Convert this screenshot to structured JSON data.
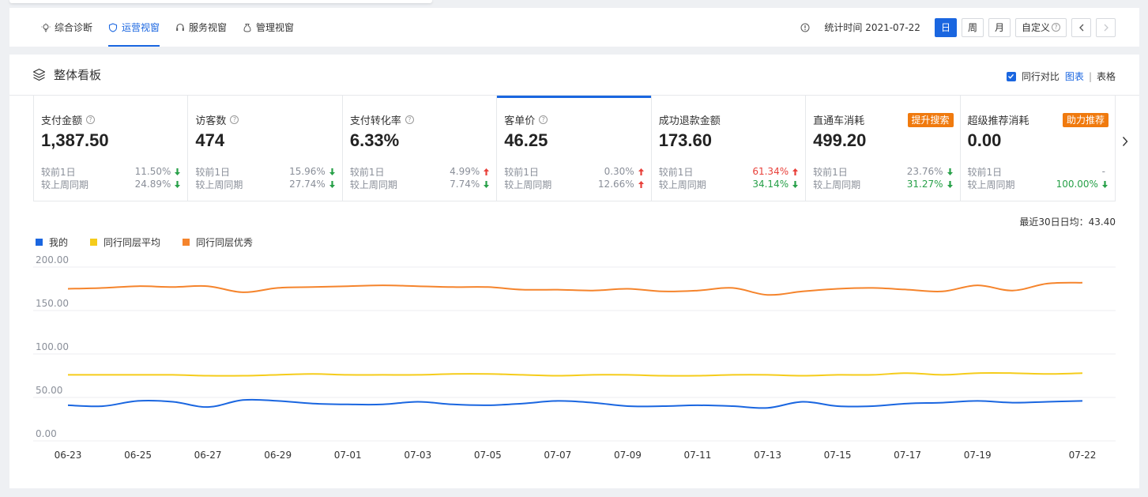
{
  "nav": {
    "tabs": [
      {
        "label": "综合诊断",
        "icon": "bulb-icon",
        "active": false
      },
      {
        "label": "运营视窗",
        "icon": "shield-icon",
        "active": true
      },
      {
        "label": "服务视窗",
        "icon": "headset-icon",
        "active": false
      },
      {
        "label": "管理视窗",
        "icon": "bag-icon",
        "active": false
      }
    ],
    "stat_time": "统计时间 2021-07-22",
    "periods": [
      "日",
      "周",
      "月",
      "自定义"
    ],
    "active_period": "日"
  },
  "board": {
    "title": "整体看板",
    "compare_label": "同行对比",
    "view_chart": "图表",
    "view_sep": "|",
    "view_table": "表格"
  },
  "kpis": [
    {
      "name": "支付金额",
      "help": true,
      "value": "1,387.50",
      "badge": "",
      "cmp": [
        {
          "label": "较前1日",
          "pct": "11.50%",
          "dir": "down"
        },
        {
          "label": "较上周同期",
          "pct": "24.89%",
          "dir": "down"
        }
      ]
    },
    {
      "name": "访客数",
      "help": true,
      "value": "474",
      "badge": "",
      "cmp": [
        {
          "label": "较前1日",
          "pct": "15.96%",
          "dir": "down"
        },
        {
          "label": "较上周同期",
          "pct": "27.74%",
          "dir": "down"
        }
      ]
    },
    {
      "name": "支付转化率",
      "help": true,
      "value": "6.33%",
      "badge": "",
      "cmp": [
        {
          "label": "较前1日",
          "pct": "4.99%",
          "dir": "up"
        },
        {
          "label": "较上周同期",
          "pct": "7.74%",
          "dir": "down"
        }
      ]
    },
    {
      "name": "客单价",
      "help": true,
      "value": "46.25",
      "badge": "",
      "selected": true,
      "cmp": [
        {
          "label": "较前1日",
          "pct": "0.30%",
          "dir": "up"
        },
        {
          "label": "较上周同期",
          "pct": "12.66%",
          "dir": "up"
        }
      ]
    },
    {
      "name": "成功退款金额",
      "help": false,
      "value": "173.60",
      "badge": "",
      "cmp": [
        {
          "label": "较前1日",
          "pct": "61.34%",
          "dir": "up",
          "color": "red"
        },
        {
          "label": "较上周同期",
          "pct": "34.14%",
          "dir": "down",
          "color": "green"
        }
      ]
    },
    {
      "name": "直通车消耗",
      "help": false,
      "value": "499.20",
      "badge": "提升搜索",
      "cmp": [
        {
          "label": "较前1日",
          "pct": "23.76%",
          "dir": "down"
        },
        {
          "label": "较上周同期",
          "pct": "31.27%",
          "dir": "down",
          "color": "green"
        }
      ]
    },
    {
      "name": "超级推荐消耗",
      "help": false,
      "value": "0.00",
      "badge": "助力推荐",
      "cmp": [
        {
          "label": "较前1日",
          "pct": "-",
          "dir": "none"
        },
        {
          "label": "较上周同期",
          "pct": "100.00%",
          "dir": "down",
          "color": "green"
        }
      ]
    }
  ],
  "chart_note": "最近30日日均：43.40",
  "colors": {
    "accent": "#1a66e0",
    "mine": "#1a66e0",
    "avg": "#f5cc1b",
    "top": "#f5842c",
    "up": "#e8403a",
    "down": "#27a048",
    "badge": "#f07a0e"
  },
  "chart_data": {
    "type": "line",
    "x": [
      "06-23",
      "06-24",
      "06-25",
      "06-26",
      "06-27",
      "06-28",
      "06-29",
      "06-30",
      "07-01",
      "07-02",
      "07-03",
      "07-04",
      "07-05",
      "07-06",
      "07-07",
      "07-08",
      "07-09",
      "07-10",
      "07-11",
      "07-12",
      "07-13",
      "07-14",
      "07-15",
      "07-16",
      "07-17",
      "07-18",
      "07-19",
      "07-20",
      "07-21",
      "07-22"
    ],
    "x_tick_labels": [
      "06-23",
      "06-25",
      "06-27",
      "06-29",
      "07-01",
      "07-03",
      "07-05",
      "07-07",
      "07-09",
      "07-11",
      "07-13",
      "07-15",
      "07-17",
      "07-19",
      "07-22"
    ],
    "ylim": [
      0,
      200
    ],
    "y_ticks": [
      "0.00",
      "50.00",
      "100.00",
      "150.00",
      "200.00"
    ],
    "grid": true,
    "legend_position": "top-left",
    "series": [
      {
        "name": "我的",
        "color": "#1a66e0",
        "values": [
          41,
          40,
          46,
          45,
          39,
          47,
          46,
          43,
          42,
          42,
          45,
          42,
          41,
          43,
          46,
          44,
          40,
          40,
          41,
          40,
          38,
          45,
          40,
          40,
          43,
          44,
          46,
          44,
          45,
          46
        ]
      },
      {
        "name": "同行同层平均",
        "color": "#f5cc1b",
        "values": [
          76,
          76,
          76,
          76,
          75,
          75,
          76,
          77,
          76,
          76,
          76,
          77,
          77,
          76,
          75,
          76,
          76,
          75,
          75,
          76,
          76,
          75,
          76,
          76,
          78,
          76,
          78,
          78,
          77,
          78
        ]
      },
      {
        "name": "同行同层优秀",
        "color": "#f5842c",
        "values": [
          175,
          176,
          178,
          177,
          178,
          171,
          176,
          177,
          178,
          179,
          178,
          177,
          177,
          174,
          174,
          173,
          175,
          172,
          173,
          176,
          168,
          172,
          175,
          176,
          174,
          172,
          179,
          173,
          181,
          182
        ]
      }
    ]
  }
}
